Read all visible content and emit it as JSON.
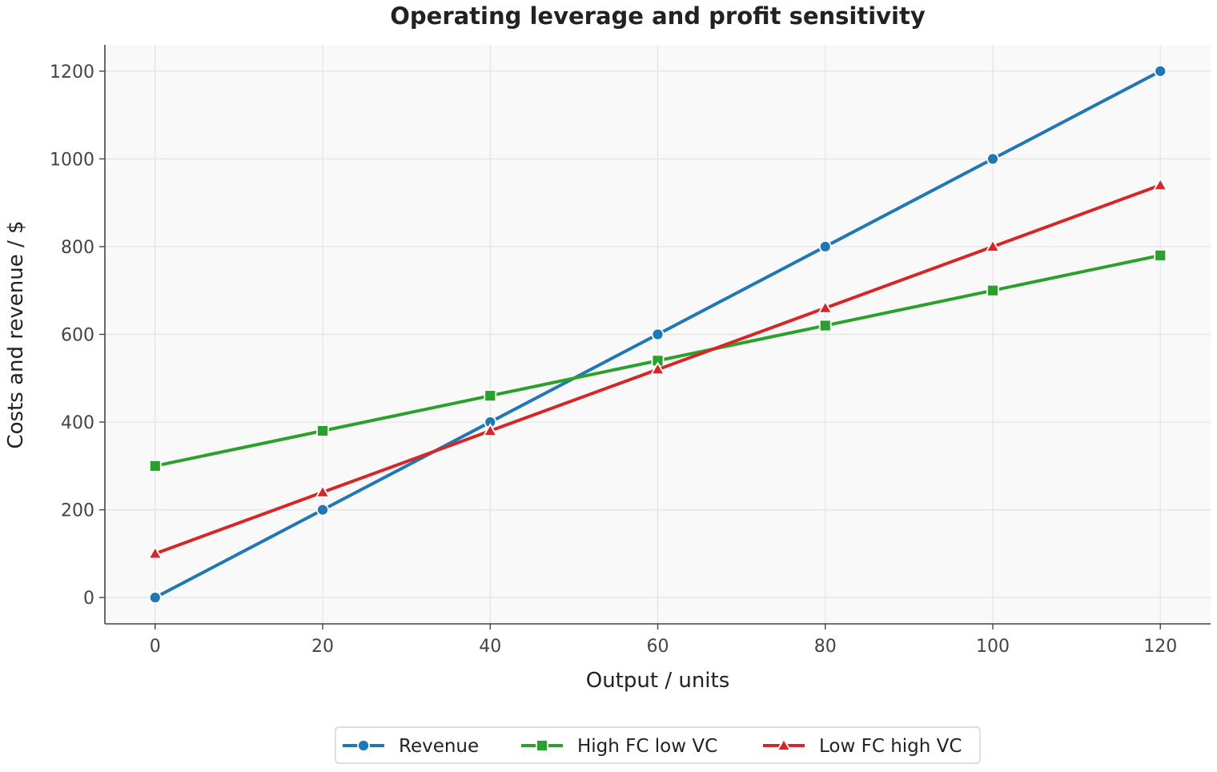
{
  "chart_data": {
    "type": "line",
    "title": "Operating leverage and profit sensitivity",
    "xlabel": "Output / units",
    "ylabel": "Costs and revenue / $",
    "x": [
      0,
      20,
      40,
      60,
      80,
      100,
      120
    ],
    "x_ticks": [
      "0",
      "20",
      "40",
      "60",
      "80",
      "100",
      "120"
    ],
    "y_ticks": [
      "0",
      "200",
      "400",
      "600",
      "800",
      "1000",
      "1200"
    ],
    "xlim": [
      -6,
      126
    ],
    "ylim": [
      -60,
      1260
    ],
    "grid": true,
    "legend_position": "bottom-center",
    "series": [
      {
        "name": "Revenue",
        "color": "#1f77b4",
        "marker": "circle",
        "values": [
          0,
          200,
          400,
          600,
          800,
          1000,
          1200
        ]
      },
      {
        "name": "High FC low VC",
        "color": "#2ca02c",
        "marker": "square",
        "values": [
          300,
          380,
          460,
          540,
          620,
          700,
          780
        ]
      },
      {
        "name": "Low FC high VC",
        "color": "#d62728",
        "marker": "triangle",
        "values": [
          100,
          240,
          380,
          520,
          660,
          800,
          940
        ]
      }
    ]
  }
}
